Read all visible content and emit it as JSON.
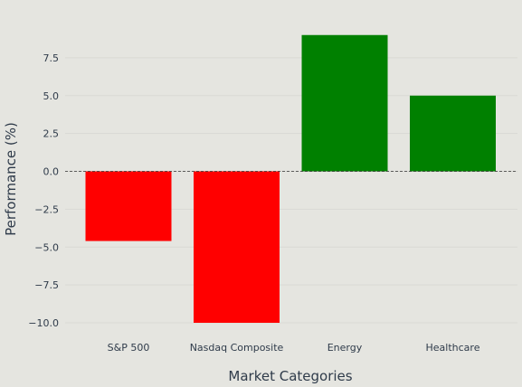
{
  "chart_data": {
    "type": "bar",
    "categories": [
      "S&P 500",
      "Nasdaq Composite",
      "Energy",
      "Healthcare"
    ],
    "values": [
      -4.6,
      -10.0,
      9.0,
      5.0
    ],
    "colors": [
      "#ff0000",
      "#ff0000",
      "#008000",
      "#008000"
    ],
    "title": "",
    "xlabel": "Market Categories",
    "ylabel": "Performance (%)",
    "ylim": [
      -10.8,
      9.0
    ],
    "yticks": [
      7.5,
      5.0,
      2.5,
      0.0,
      -2.5,
      -5.0,
      -7.5,
      -10.0
    ],
    "ytick_labels": [
      "7.5",
      "5.0",
      "2.5",
      "0.0",
      "−2.5",
      "−5.0",
      "−7.5",
      "−10.0"
    ],
    "zero_line": "dashed",
    "grid": true,
    "background": "#e5e5e0",
    "text_color": "#2f3b4a"
  }
}
